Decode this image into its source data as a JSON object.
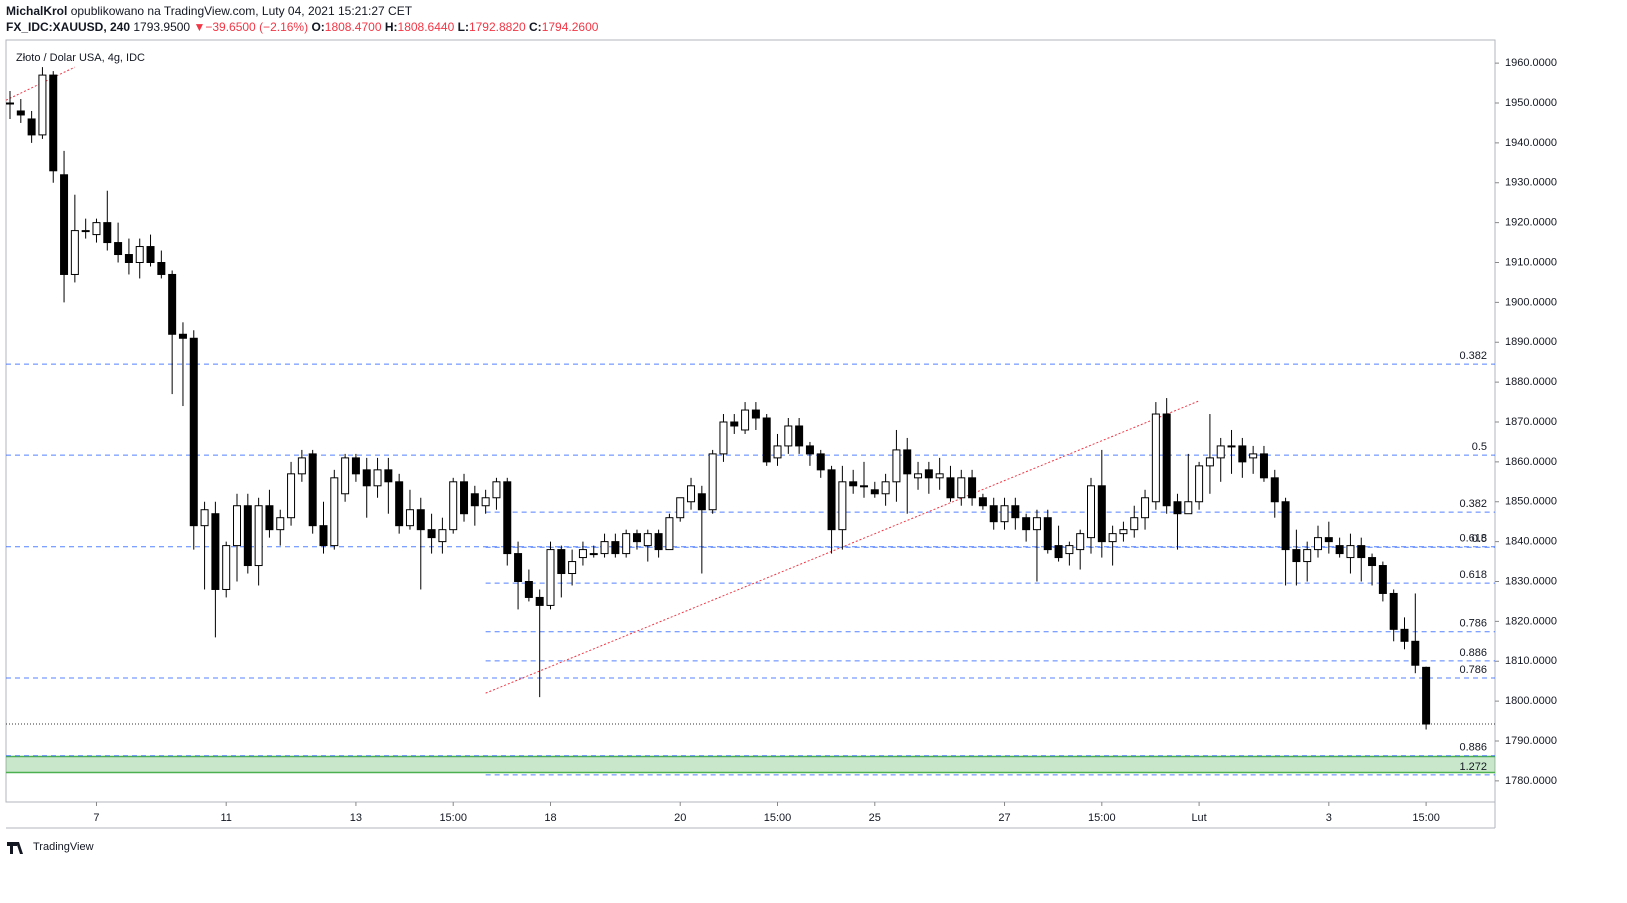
{
  "header": {
    "author": "MichalKrol",
    "published": "opublikowano na TradingView.com, Luty 04, 2021 15:21:27 CET"
  },
  "symbol_line": {
    "symbol": "FX_IDC:XAUUSD, 240",
    "last": "1793.9500",
    "arrow": "▼",
    "change": "−39.6500 (−2.16%)",
    "o_label": "O:",
    "o": "1808.4700",
    "h_label": "H:",
    "h": "1808.6440",
    "l_label": "L:",
    "l": "1792.8820",
    "c_label": "C:",
    "c": "1794.2600"
  },
  "footer": {
    "brand": "TradingView"
  },
  "chart_data": {
    "type": "candlestick",
    "title": "Złoto / Dolar USA, 4g, IDC",
    "categories": [
      null,
      null,
      null,
      null,
      null,
      null,
      null,
      null,
      "7",
      null,
      null,
      null,
      null,
      null,
      null,
      null,
      null,
      null,
      null,
      null,
      "11",
      null,
      null,
      null,
      null,
      null,
      null,
      null,
      null,
      null,
      null,
      null,
      "13",
      null,
      null,
      null,
      null,
      null,
      null,
      null,
      null,
      "15:00",
      null,
      null,
      null,
      null,
      null,
      null,
      null,
      null,
      "18",
      null,
      null,
      null,
      null,
      null,
      null,
      null,
      null,
      null,
      null,
      null,
      "20",
      null,
      null,
      null,
      null,
      null,
      null,
      null,
      null,
      "15:00",
      null,
      null,
      null,
      null,
      null,
      null,
      null,
      null,
      "25",
      null,
      null,
      null,
      null,
      null,
      null,
      null,
      null,
      null,
      null,
      null,
      "27",
      null,
      null,
      null,
      null,
      null,
      null,
      null,
      null,
      "15:00",
      null,
      null,
      null,
      null,
      null,
      null,
      null,
      null,
      "Lut",
      null,
      null,
      null,
      null,
      null,
      null,
      null,
      null,
      null,
      null,
      null,
      "3",
      null,
      null,
      null,
      null,
      null,
      null,
      null,
      null,
      "15:00"
    ],
    "open": [
      1950,
      1948,
      1946,
      1942,
      1957,
      1932,
      1907,
      1918,
      1917,
      1920,
      1915,
      1912,
      1910,
      1914,
      1910,
      1907,
      1892,
      1891,
      1844,
      1847,
      1828,
      1839,
      1849,
      1834,
      1849,
      1843,
      1846,
      1857,
      1862,
      1844,
      1839,
      1852,
      1861,
      1858,
      1854,
      1858,
      1855,
      1844,
      1848,
      1843,
      1840,
      1843,
      1855,
      1852,
      1849,
      1851,
      1855,
      1837,
      1830,
      1826,
      1824,
      1838,
      1832,
      1836,
      1837,
      1837,
      1840,
      1837,
      1842,
      1839,
      1842,
      1838,
      1846,
      1850,
      1852,
      1848,
      1862,
      1870,
      1868,
      1873,
      1871,
      1861,
      1864,
      1869,
      1864,
      1862,
      1858,
      1843,
      1855,
      1854,
      1853,
      1852,
      1855,
      1863,
      1856,
      1858,
      1856,
      1856,
      1851,
      1856,
      1851,
      1849,
      1845,
      1849,
      1846,
      1843,
      1846,
      1839,
      1837,
      1838,
      1841,
      1854,
      1840,
      1842,
      1843,
      1846,
      1850,
      1872,
      1850,
      1847,
      1850,
      1859,
      1861,
      1864,
      1864,
      1861,
      1862,
      1856,
      1850,
      1838,
      1835,
      1838,
      1841,
      1839,
      1836,
      1839,
      1836,
      1834,
      1827,
      1818,
      1815,
      1808.47
    ],
    "high": [
      1953,
      1951,
      1948,
      1959,
      1958,
      1938,
      1927,
      1921,
      1921,
      1928,
      1920,
      1916,
      1916,
      1917,
      1913,
      1908,
      1895,
      1893,
      1850,
      1850,
      1840,
      1852,
      1852,
      1851,
      1853,
      1848,
      1860,
      1863,
      1863,
      1850,
      1858,
      1862,
      1862,
      1861,
      1861,
      1861,
      1857,
      1853,
      1851,
      1847,
      1846,
      1856,
      1857,
      1854,
      1853,
      1856,
      1856,
      1840,
      1833,
      1828,
      1840,
      1839,
      1838,
      1840,
      1839,
      1842,
      1842,
      1843,
      1843,
      1843,
      1843,
      1847,
      1851,
      1856,
      1854,
      1863,
      1872,
      1872,
      1875,
      1875,
      1872,
      1867,
      1871,
      1871,
      1865,
      1863,
      1859,
      1859,
      1858,
      1860,
      1855,
      1857,
      1868,
      1866,
      1860,
      1860,
      1861,
      1859,
      1858,
      1858,
      1852,
      1851,
      1851,
      1851,
      1847,
      1848,
      1848,
      1844,
      1840,
      1843,
      1856,
      1863,
      1844,
      1845,
      1849,
      1853,
      1875,
      1876,
      1852,
      1862,
      1860,
      1872,
      1866,
      1868,
      1866,
      1864,
      1864,
      1858,
      1851,
      1843,
      1840,
      1844,
      1845,
      1841,
      1842,
      1841,
      1837,
      1835,
      1828,
      1821,
      1827,
      1808.644
    ],
    "low": [
      1946,
      1945,
      1940,
      1941,
      1930,
      1900,
      1905,
      1916,
      1915,
      1913,
      1910,
      1907,
      1906,
      1909,
      1906,
      1877,
      1874,
      1838,
      1828,
      1816,
      1826,
      1830,
      1832,
      1829,
      1841,
      1839,
      1844,
      1855,
      1842,
      1837,
      1838,
      1850,
      1855,
      1846,
      1851,
      1847,
      1842,
      1843,
      1828,
      1837,
      1837,
      1842,
      1845,
      1844,
      1847,
      1848,
      1834,
      1823,
      1825,
      1801,
      1823,
      1826,
      1829,
      1834,
      1836,
      1836,
      1836,
      1836,
      1838,
      1835,
      1836,
      1838,
      1845,
      1848,
      1832,
      1847,
      1860,
      1867,
      1867,
      1868,
      1859,
      1859,
      1862,
      1862,
      1859,
      1856,
      1837,
      1838,
      1852,
      1851,
      1851,
      1849,
      1850,
      1847,
      1853,
      1852,
      1853,
      1850,
      1849,
      1849,
      1848,
      1843,
      1843,
      1843,
      1840,
      1830,
      1837,
      1835,
      1834,
      1833,
      1837,
      1836,
      1834,
      1840,
      1841,
      1843,
      1848,
      1847,
      1838,
      1847,
      1848,
      1852,
      1855,
      1857,
      1856,
      1857,
      1855,
      1846,
      1829,
      1829,
      1830,
      1836,
      1837,
      1836,
      1832,
      1830,
      1829,
      1825,
      1815,
      1813,
      1807,
      1792.882
    ],
    "close": [
      1950,
      1947,
      1942,
      1957,
      1933,
      1907,
      1918,
      1918,
      1920,
      1915,
      1912,
      1910,
      1914,
      1910,
      1907,
      1892,
      1891,
      1844,
      1848,
      1828,
      1839,
      1849,
      1834,
      1849,
      1843,
      1846,
      1857,
      1861,
      1844,
      1839,
      1856,
      1861,
      1857,
      1854,
      1858,
      1855,
      1844,
      1848,
      1843,
      1841,
      1843,
      1855,
      1847,
      1849,
      1851,
      1855,
      1837,
      1830,
      1826,
      1824,
      1838,
      1832,
      1835,
      1838,
      1837,
      1840,
      1837,
      1842,
      1840,
      1842,
      1838,
      1846,
      1851,
      1854,
      1848,
      1862,
      1870,
      1869,
      1873,
      1871,
      1860,
      1864,
      1869,
      1864,
      1862,
      1858,
      1843,
      1855,
      1854,
      1854,
      1852,
      1855,
      1863,
      1857,
      1857,
      1856,
      1857,
      1851,
      1856,
      1851,
      1849,
      1845,
      1849,
      1846,
      1843,
      1846,
      1838,
      1836,
      1839,
      1842,
      1854,
      1840,
      1842,
      1843,
      1846,
      1851,
      1872,
      1849,
      1847,
      1850,
      1859,
      1861,
      1864,
      1864,
      1860,
      1862,
      1856,
      1850,
      1838,
      1835,
      1838,
      1841,
      1840,
      1837,
      1839,
      1836,
      1834,
      1827,
      1818,
      1815,
      1809,
      1794.26
    ],
    "up_color": "#ffffff",
    "down_color": "#000000",
    "wick_color": "#000000",
    "ylim": [
      1774.7,
      1965.8
    ],
    "yticks": [
      {
        "value": 1780,
        "label": "1780.0000"
      },
      {
        "value": 1790,
        "label": "1790.0000"
      },
      {
        "value": 1800,
        "label": "1800.0000"
      },
      {
        "value": 1810,
        "label": "1810.0000"
      },
      {
        "value": 1820,
        "label": "1820.0000"
      },
      {
        "value": 1830,
        "label": "1830.0000"
      },
      {
        "value": 1840,
        "label": "1840.0000"
      },
      {
        "value": 1850,
        "label": "1850.0000"
      },
      {
        "value": 1860,
        "label": "1860.0000"
      },
      {
        "value": 1870,
        "label": "1870.0000"
      },
      {
        "value": 1880,
        "label": "1880.0000"
      },
      {
        "value": 1890,
        "label": "1890.0000"
      },
      {
        "value": 1900,
        "label": "1900.0000"
      },
      {
        "value": 1910,
        "label": "1910.0000"
      },
      {
        "value": 1920,
        "label": "1920.0000"
      },
      {
        "value": 1930,
        "label": "1930.0000"
      },
      {
        "value": 1940,
        "label": "1940.0000"
      },
      {
        "value": 1950,
        "label": "1950.0000"
      },
      {
        "value": 1960,
        "label": "1960.0000"
      }
    ],
    "fib_a": [
      {
        "label": "0.382",
        "value": 1884.5
      },
      {
        "label": "0.5",
        "value": 1861.7
      },
      {
        "label": "0.618",
        "value": 1838.7
      },
      {
        "label": "0.786",
        "value": 1805.8
      },
      {
        "label": "0.886",
        "value": 1786.3
      }
    ],
    "fib_b": {
      "start": 44,
      "levels": [
        {
          "label": "0.382",
          "value": 1847.4
        },
        {
          "label": "0.5",
          "value": 1838.6
        },
        {
          "label": "0.618",
          "value": 1829.6
        },
        {
          "label": "0.786",
          "value": 1817.4
        },
        {
          "label": "0.886",
          "value": 1810.1
        },
        {
          "label": "1.272",
          "value": 1781.5
        }
      ]
    },
    "fib_color": "#2962ff",
    "zone": [
      1782.1,
      1786.1
    ],
    "zone_color": "#4caf50",
    "last_price": 1794.26,
    "trendlines": [
      {
        "start": [
          -0.4,
          1950.7
        ],
        "end": [
          6,
          1959
        ]
      },
      {
        "start": [
          44,
          1802
        ],
        "end": [
          110,
          1875.3
        ]
      }
    ],
    "trend_color": "#f23645"
  }
}
